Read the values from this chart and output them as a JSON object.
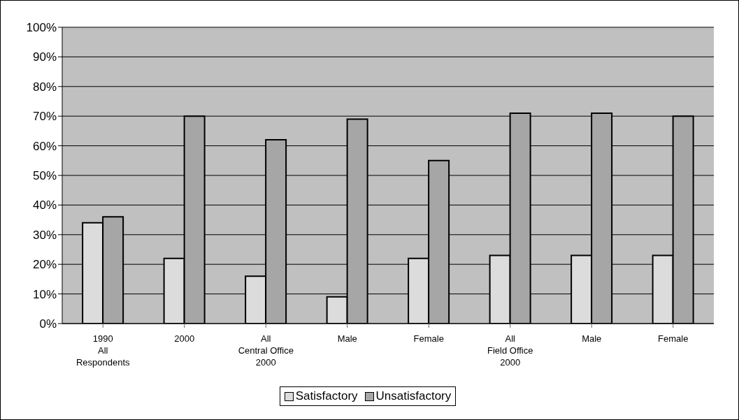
{
  "chart_data": {
    "type": "bar",
    "categories": [
      "1990\nAll\nRespondents",
      "2000",
      "All\nCentral Office\n2000",
      "Male",
      "Female",
      "All\nField Office\n2000",
      "Male",
      "Female"
    ],
    "series": [
      {
        "name": "Satisfactory",
        "color": "#dcdcdc",
        "values": [
          34,
          22,
          16,
          9,
          22,
          23,
          23,
          23
        ]
      },
      {
        "name": "Unsatisfactory",
        "color": "#a6a6a6",
        "values": [
          36,
          70,
          62,
          69,
          55,
          71,
          71,
          70
        ]
      }
    ],
    "ylim": [
      0,
      100
    ],
    "yticks": [
      {
        "value": 0,
        "label": "0%"
      },
      {
        "value": 10,
        "label": "10%"
      },
      {
        "value": 20,
        "label": "20%"
      },
      {
        "value": 30,
        "label": "30%"
      },
      {
        "value": 40,
        "label": "40%"
      },
      {
        "value": 50,
        "label": "50%"
      },
      {
        "value": 60,
        "label": "60%"
      },
      {
        "value": 70,
        "label": "70%"
      },
      {
        "value": 80,
        "label": "80%"
      },
      {
        "value": 90,
        "label": "90%"
      },
      {
        "value": 100,
        "label": "100%"
      }
    ],
    "grid": "y",
    "legend": "bottom"
  }
}
